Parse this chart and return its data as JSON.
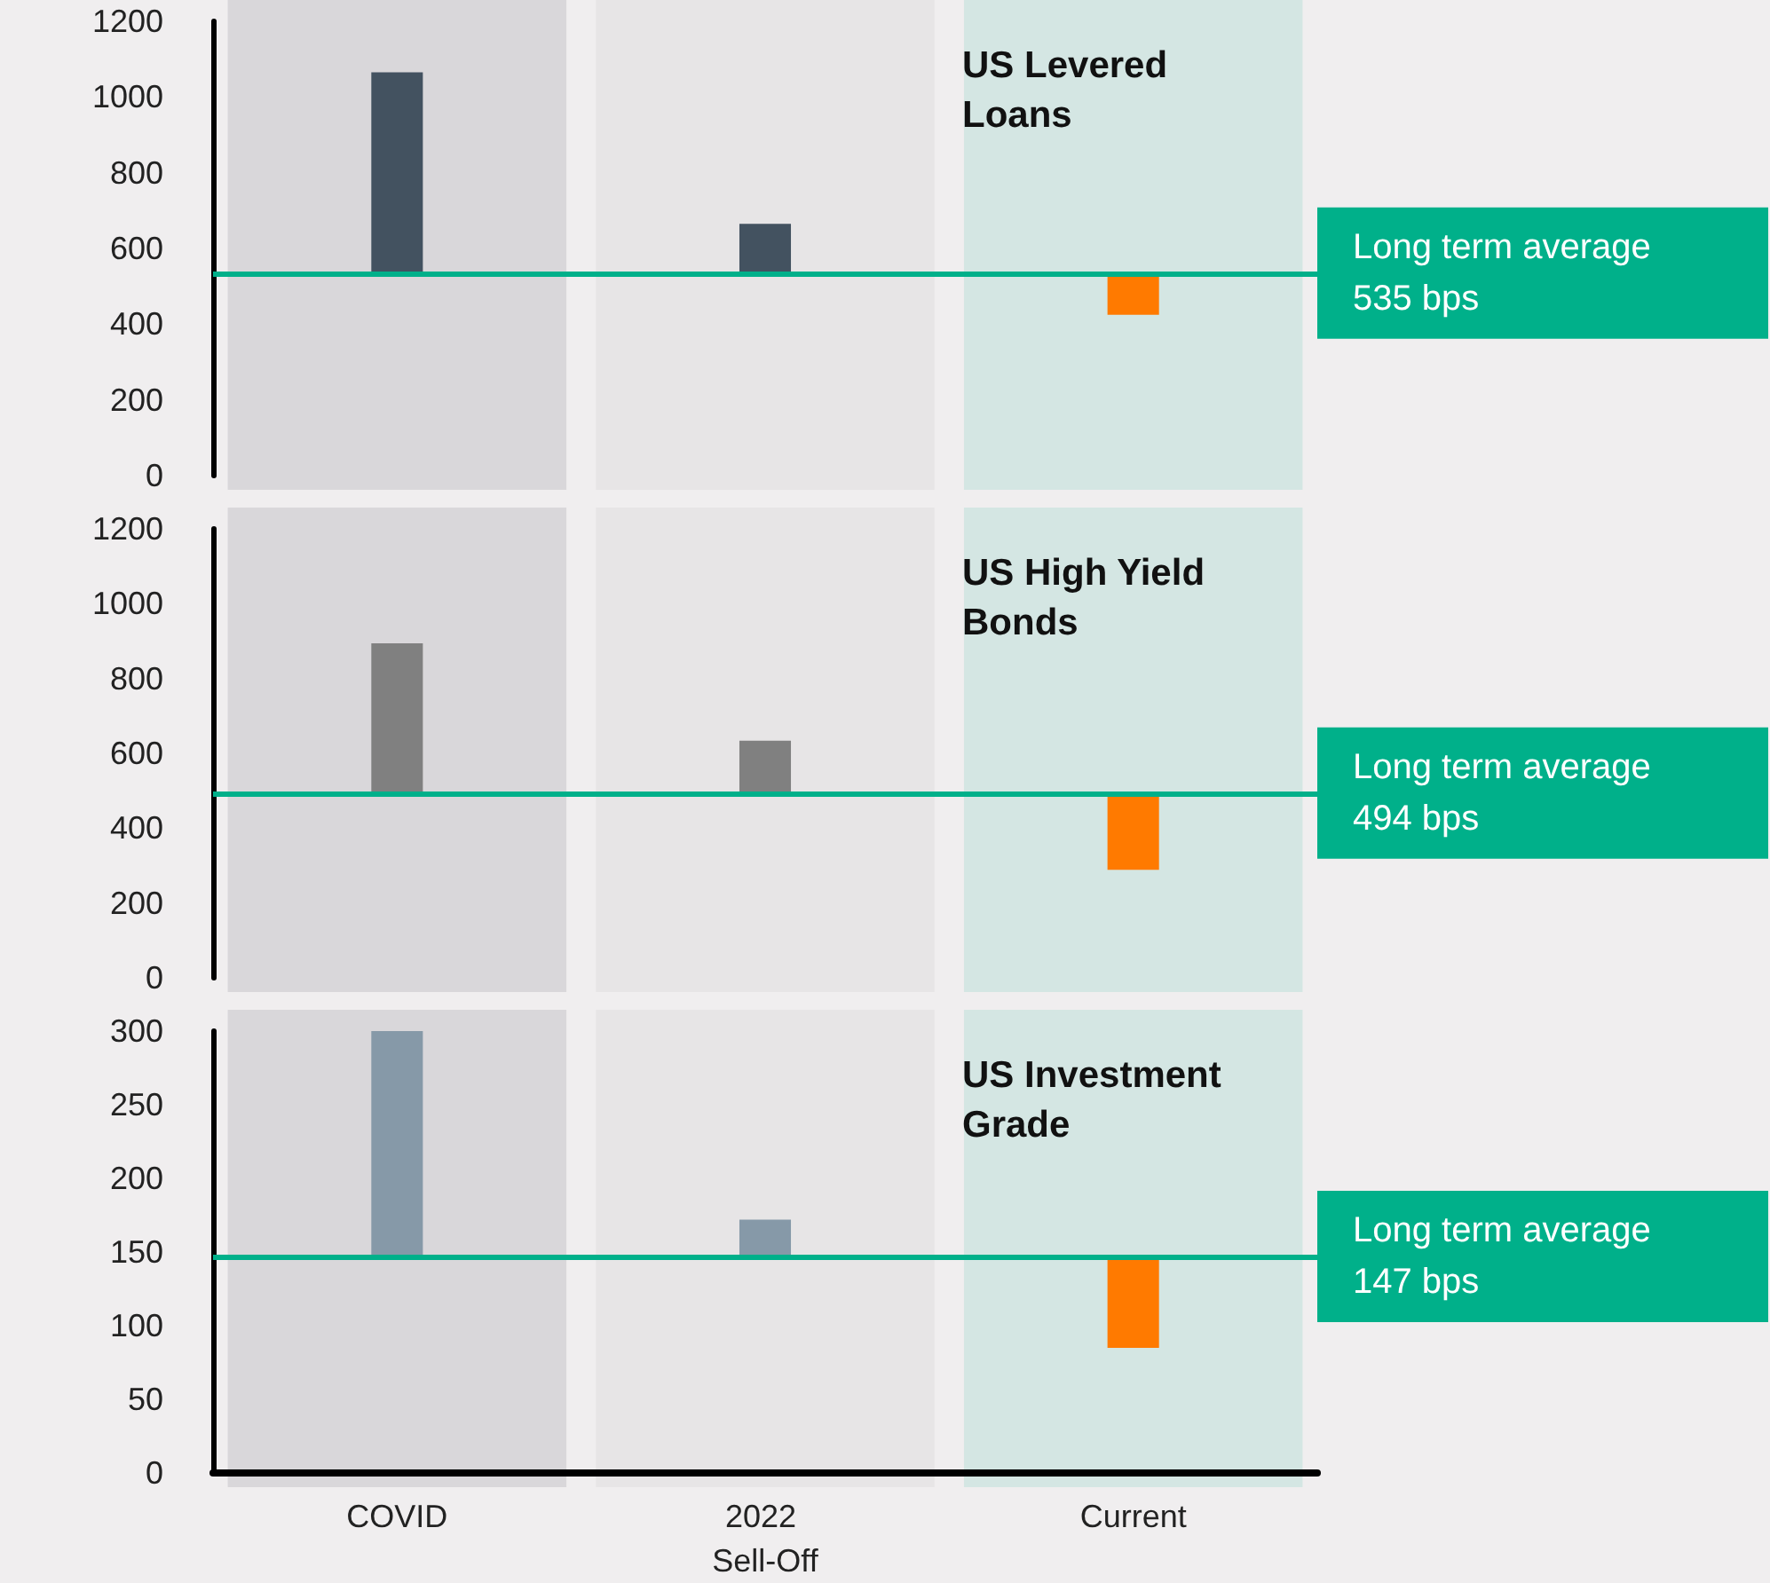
{
  "chart_data": [
    {
      "type": "bar",
      "title": "US Levered Loans",
      "categories": [
        "COVID",
        "2022 Sell-Off",
        "Current"
      ],
      "base": [
        535,
        535,
        535
      ],
      "values": [
        530,
        130,
        -110
      ],
      "colors": [
        "#435260",
        "#435260",
        "#ff7a00"
      ],
      "ylim": [
        0,
        1200
      ],
      "yticks": [
        0,
        200,
        400,
        600,
        800,
        1000,
        1200
      ],
      "tick_labels": "y",
      "grid": false,
      "ref_lines": [
        {
          "axis": "y",
          "value": 535,
          "label": "Long term average\n535 bps",
          "color": "#00b08a"
        }
      ],
      "bands": [
        {
          "axis": "x",
          "from": "COVID",
          "to": "COVID",
          "color": "#d9d7da"
        },
        {
          "axis": "x",
          "from": "2022 Sell-Off",
          "to": "2022 Sell-Off",
          "color": "#e7e5e6"
        },
        {
          "axis": "x",
          "from": "Current",
          "to": "Current",
          "color": "#d4e6e3"
        }
      ]
    },
    {
      "type": "bar",
      "title": "US High Yield Bonds",
      "categories": [
        "COVID",
        "2022 Sell-Off",
        "Current"
      ],
      "base": [
        494,
        494,
        494
      ],
      "values": [
        400,
        140,
        -205
      ],
      "colors": [
        "#808080",
        "#808080",
        "#ff7a00"
      ],
      "ylim": [
        0,
        1200
      ],
      "yticks": [
        0,
        200,
        400,
        600,
        800,
        1000,
        1200
      ],
      "tick_labels": "y",
      "grid": false,
      "ref_lines": [
        {
          "axis": "y",
          "value": 494,
          "label": "Long term average\n494 bps",
          "color": "#00b08a"
        }
      ],
      "bands": [
        {
          "axis": "x",
          "from": "COVID",
          "to": "COVID",
          "color": "#d9d7da"
        },
        {
          "axis": "x",
          "from": "2022 Sell-Off",
          "to": "2022 Sell-Off",
          "color": "#e7e5e6"
        },
        {
          "axis": "x",
          "from": "Current",
          "to": "Current",
          "color": "#d4e6e3"
        }
      ]
    },
    {
      "type": "bar",
      "title": "US Investment Grade",
      "categories": [
        "COVID",
        "2022 Sell-Off",
        "Current"
      ],
      "base": [
        147,
        147,
        147
      ],
      "values": [
        153,
        25,
        -62
      ],
      "colors": [
        "#8699a8",
        "#8699a8",
        "#ff7a00"
      ],
      "ylim": [
        0,
        300
      ],
      "yticks": [
        0,
        50,
        100,
        150,
        200,
        250,
        300
      ],
      "grid": false,
      "ref_lines": [
        {
          "axis": "y",
          "value": 147,
          "label": "Long term average\n147 bps",
          "color": "#00b08a"
        }
      ],
      "bands": [
        {
          "axis": "x",
          "from": "COVID",
          "to": "COVID",
          "color": "#d9d7da"
        },
        {
          "axis": "x",
          "from": "2022 Sell-Off",
          "to": "2022 Sell-Off",
          "color": "#e7e5e6"
        },
        {
          "axis": "x",
          "from": "Current",
          "to": "Current",
          "color": "#d4e6e3"
        }
      ]
    }
  ]
}
